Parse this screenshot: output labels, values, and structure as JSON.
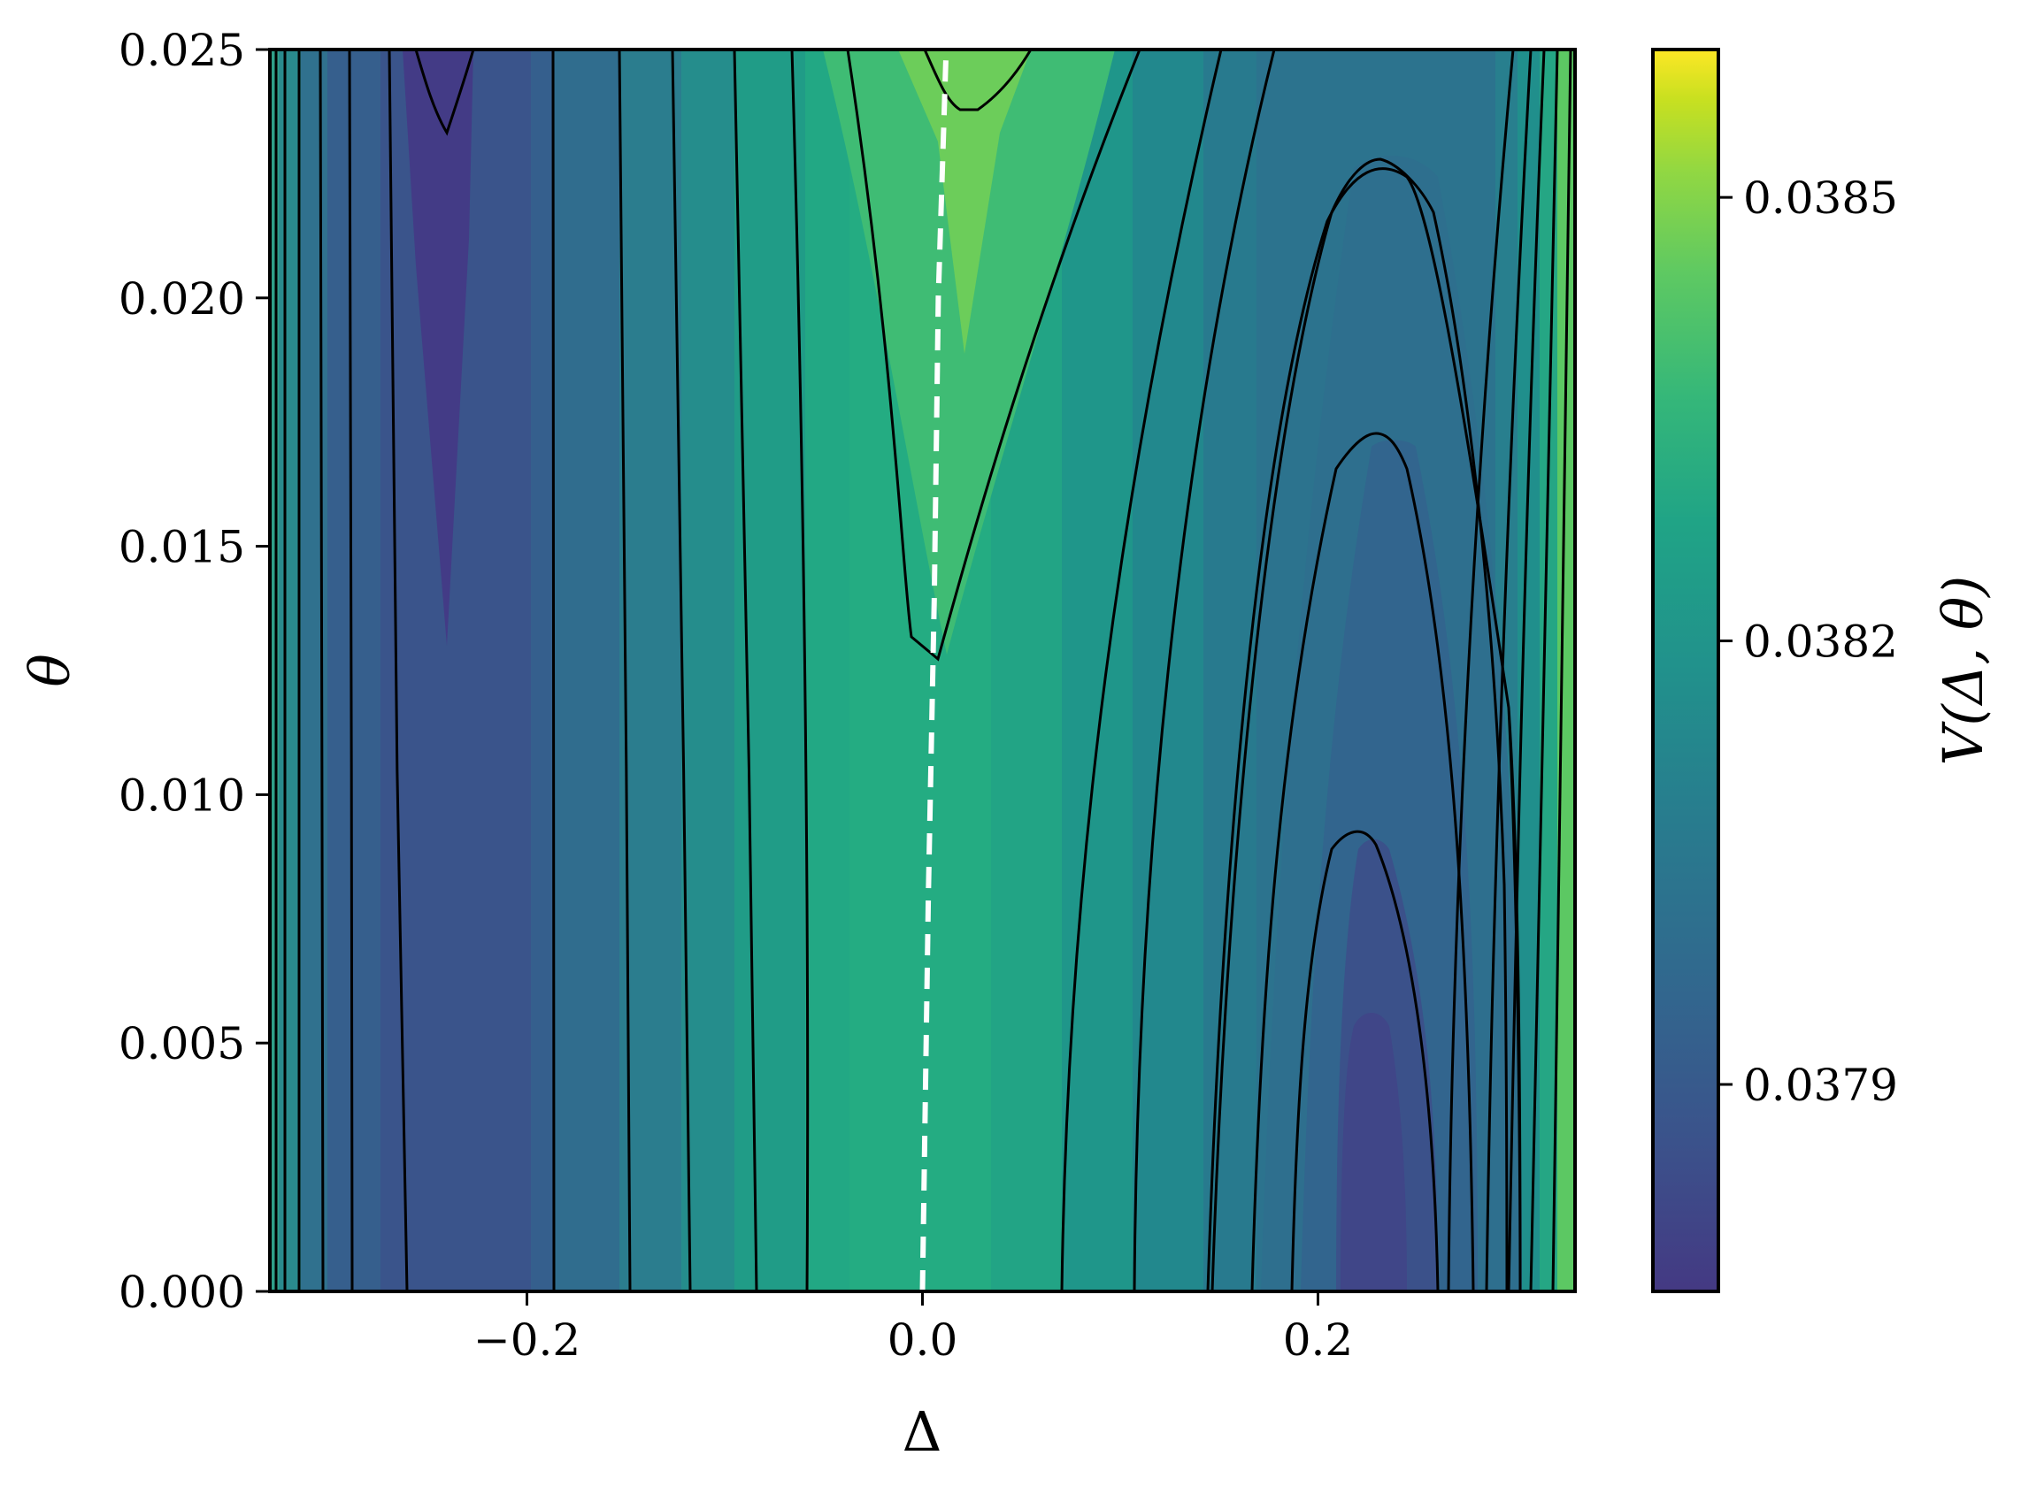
{
  "chart_data": {
    "type": "contour",
    "xlabel": "Δ",
    "ylabel": "θ",
    "colorbar_label": "V(Δ, θ)",
    "colormap": "viridis",
    "colorbar_range": [
      0.03776,
      0.0386
    ],
    "xlim": [
      -0.33,
      0.33
    ],
    "ylim": [
      0.0,
      0.025
    ],
    "x_ticks": [
      -0.2,
      0.0,
      0.2
    ],
    "x_tick_labels": [
      "−0.2",
      "0.0",
      "0.2"
    ],
    "y_ticks": [
      0.0,
      0.005,
      0.01,
      0.015,
      0.02,
      0.025
    ],
    "y_tick_labels": [
      "0.000",
      "0.005",
      "0.010",
      "0.015",
      "0.020",
      "0.025"
    ],
    "colorbar_ticks": [
      0.0379,
      0.0382,
      0.0385
    ],
    "colorbar_tick_labels": [
      "0.0379",
      "0.0382",
      "0.0385"
    ],
    "minimum_curve": {
      "style": "dashed",
      "color": "#ffffff",
      "points": [
        [
          0.0,
          0.0
        ],
        [
          0.003,
          0.008
        ],
        [
          0.006,
          0.014
        ],
        [
          0.008,
          0.02
        ],
        [
          0.012,
          0.025
        ]
      ]
    },
    "local_minima": [
      {
        "delta": -0.24,
        "theta": 0.025
      },
      {
        "delta": 0.225,
        "theta": 0.0
      }
    ],
    "local_maximum": {
      "delta": 0.01,
      "theta": 0.025
    }
  }
}
